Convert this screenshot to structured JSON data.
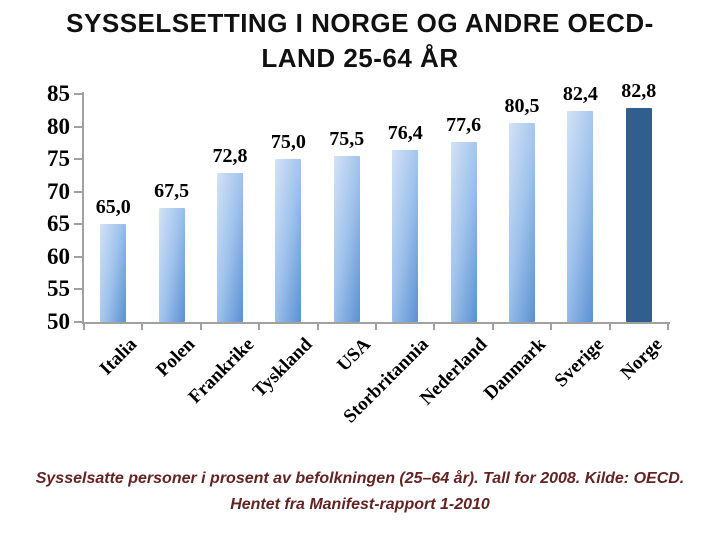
{
  "title": {
    "line1": "SYSSELSETTING I NORGE OG ANDRE OECD-",
    "line2": "LAND 25-64 ÅR",
    "color": "#111111"
  },
  "caption": {
    "line1": "Sysselsatte personer i prosent av befolkningen (25–64 år). Tall for 2008. Kilde: OECD.",
    "line2": "Hentet fra Manifest-rapport 1-2010",
    "color": "#622423"
  },
  "chart_data": {
    "type": "bar",
    "title": "SYSSELSETTING I NORGE OG ANDRE OECD-LAND 25-64 ÅR",
    "categories": [
      "Italia",
      "Polen",
      "Frankrike",
      "Tyskland",
      "USA",
      "Storbritannia",
      "Nederland",
      "Danmark",
      "Sverige",
      "Norge"
    ],
    "values": [
      65.0,
      67.5,
      72.8,
      75.0,
      75.5,
      76.4,
      77.6,
      80.5,
      82.4,
      82.8
    ],
    "value_labels": [
      "65,0",
      "67,5",
      "72,8",
      "75,0",
      "75,5",
      "76,4",
      "77,6",
      "80,5",
      "82,4",
      "82,8"
    ],
    "xlabel": "",
    "ylabel": "",
    "ylim": [
      50,
      85
    ],
    "yticks": [
      50,
      55,
      60,
      65,
      70,
      75,
      80,
      85
    ],
    "grid": false,
    "legend": false,
    "decimal_separator": ",",
    "highlight_index": 9,
    "bar_gradient": [
      "#d3e2f6",
      "#9fc2ec",
      "#5b90d2"
    ],
    "highlight_color": "#305f8d",
    "axis_color": "#a0a0a0"
  }
}
